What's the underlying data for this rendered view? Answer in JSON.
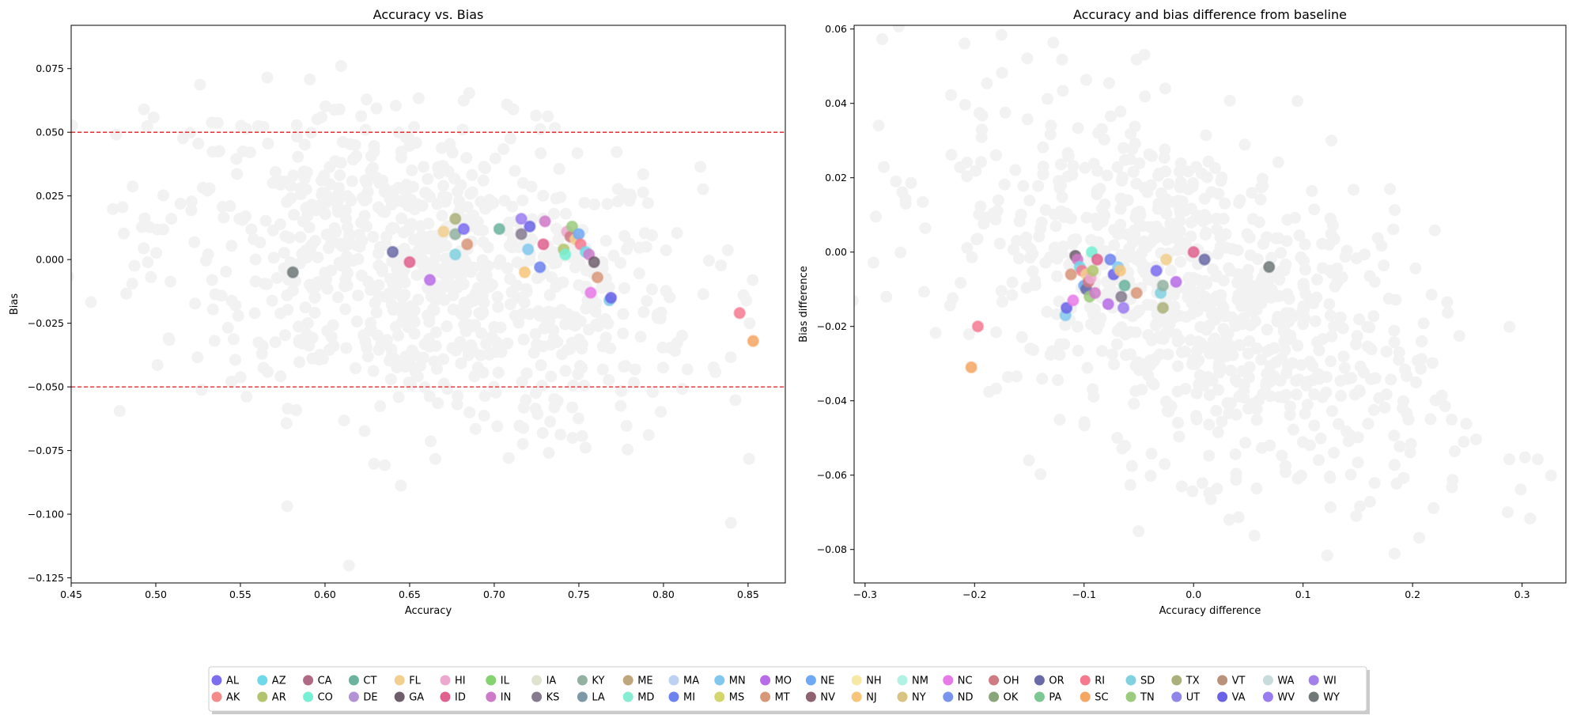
{
  "chart_data": [
    {
      "type": "scatter",
      "title": "Accuracy vs. Bias",
      "xlabel": "Accuracy",
      "ylabel": "Bias",
      "xlim": [
        0.45,
        0.872
      ],
      "ylim": [
        -0.127,
        0.092
      ],
      "xticks": [
        0.45,
        0.5,
        0.55,
        0.6,
        0.65,
        0.7,
        0.75,
        0.8,
        0.85
      ],
      "xtick_labels": [
        "0.45",
        "0.50",
        "0.55",
        "0.60",
        "0.65",
        "0.70",
        "0.75",
        "0.80",
        "0.85"
      ],
      "yticks": [
        -0.125,
        -0.1,
        -0.075,
        -0.05,
        -0.025,
        0.0,
        0.025,
        0.05,
        0.075
      ],
      "ytick_labels": [
        "−0.125",
        "−0.100",
        "−0.075",
        "−0.050",
        "−0.025",
        "0.000",
        "0.025",
        "0.050",
        "0.075"
      ],
      "reference_lines": [
        {
          "axis": "y",
          "value": 0.05,
          "color": "#e41a1c",
          "style": "dashed"
        },
        {
          "axis": "y",
          "value": -0.05,
          "color": "#e41a1c",
          "style": "dashed"
        }
      ],
      "background_cloud": {
        "color": "#f2f2f2",
        "center": [
          0.66,
          -0.005
        ],
        "spread": [
          0.08,
          0.03
        ],
        "count": 900
      },
      "points": [
        {
          "state": "WY",
          "x": 0.581,
          "y": -0.005
        },
        {
          "state": "OR",
          "x": 0.64,
          "y": 0.003
        },
        {
          "state": "ID",
          "x": 0.65,
          "y": -0.001
        },
        {
          "state": "MO",
          "x": 0.662,
          "y": -0.008
        },
        {
          "state": "FL",
          "x": 0.67,
          "y": 0.011
        },
        {
          "state": "TX",
          "x": 0.677,
          "y": 0.016
        },
        {
          "state": "KY",
          "x": 0.677,
          "y": 0.01
        },
        {
          "state": "SD",
          "x": 0.677,
          "y": 0.002
        },
        {
          "state": "AL",
          "x": 0.682,
          "y": 0.012
        },
        {
          "state": "MT",
          "x": 0.684,
          "y": 0.006
        },
        {
          "state": "CT",
          "x": 0.703,
          "y": 0.012
        },
        {
          "state": "WV",
          "x": 0.716,
          "y": 0.016
        },
        {
          "state": "KS",
          "x": 0.716,
          "y": 0.01
        },
        {
          "state": "NJ",
          "x": 0.718,
          "y": -0.005
        },
        {
          "state": "MN",
          "x": 0.72,
          "y": 0.004
        },
        {
          "state": "VA",
          "x": 0.721,
          "y": 0.013
        },
        {
          "state": "MI",
          "x": 0.727,
          "y": -0.003
        },
        {
          "state": "ID",
          "x": 0.729,
          "y": 0.006
        },
        {
          "state": "IN",
          "x": 0.73,
          "y": 0.015
        },
        {
          "state": "AR",
          "x": 0.741,
          "y": 0.004
        },
        {
          "state": "CO",
          "x": 0.742,
          "y": 0.002
        },
        {
          "state": "HI",
          "x": 0.743,
          "y": 0.011
        },
        {
          "state": "OH",
          "x": 0.745,
          "y": 0.009
        },
        {
          "state": "TN",
          "x": 0.746,
          "y": 0.013
        },
        {
          "state": "FL",
          "x": 0.748,
          "y": 0.008
        },
        {
          "state": "NE",
          "x": 0.75,
          "y": 0.01
        },
        {
          "state": "RI",
          "x": 0.751,
          "y": 0.006
        },
        {
          "state": "AZ",
          "x": 0.754,
          "y": 0.003
        },
        {
          "state": "IN",
          "x": 0.756,
          "y": 0.002
        },
        {
          "state": "NC",
          "x": 0.757,
          "y": -0.013
        },
        {
          "state": "GA",
          "x": 0.759,
          "y": -0.001
        },
        {
          "state": "MT",
          "x": 0.761,
          "y": -0.007
        },
        {
          "state": "MN",
          "x": 0.768,
          "y": -0.016
        },
        {
          "state": "VA",
          "x": 0.769,
          "y": -0.015
        },
        {
          "state": "RI",
          "x": 0.845,
          "y": -0.021
        },
        {
          "state": "SC",
          "x": 0.853,
          "y": -0.032
        }
      ]
    },
    {
      "type": "scatter",
      "title": "Accuracy and bias difference from baseline",
      "xlabel": "Accuracy difference",
      "ylabel": "Bias difference",
      "xlim": [
        -0.31,
        0.34
      ],
      "ylim": [
        -0.089,
        0.061
      ],
      "xticks": [
        -0.3,
        -0.2,
        -0.1,
        0.0,
        0.1,
        0.2,
        0.3
      ],
      "xtick_labels": [
        "−0.3",
        "−0.2",
        "−0.1",
        "0.0",
        "0.1",
        "0.2",
        "0.3"
      ],
      "yticks": [
        -0.08,
        -0.06,
        -0.04,
        -0.02,
        0.0,
        0.02,
        0.04,
        0.06
      ],
      "ytick_labels": [
        "−0.08",
        "−0.06",
        "−0.04",
        "−0.02",
        "0.00",
        "0.02",
        "0.04",
        "0.06"
      ],
      "background_cloud": {
        "color": "#f2f2f2",
        "center": [
          0.0,
          -0.012
        ],
        "spread": [
          0.11,
          0.022
        ],
        "count": 900
      },
      "points": [
        {
          "state": "SC",
          "x": -0.203,
          "y": -0.031
        },
        {
          "state": "RI",
          "x": -0.197,
          "y": -0.02
        },
        {
          "state": "MN",
          "x": -0.117,
          "y": -0.017
        },
        {
          "state": "VA",
          "x": -0.116,
          "y": -0.015
        },
        {
          "state": "MT",
          "x": -0.112,
          "y": -0.006
        },
        {
          "state": "NC",
          "x": -0.11,
          "y": -0.013
        },
        {
          "state": "GA",
          "x": -0.108,
          "y": -0.001
        },
        {
          "state": "IN",
          "x": -0.106,
          "y": -0.002
        },
        {
          "state": "AZ",
          "x": -0.104,
          "y": -0.004
        },
        {
          "state": "RI",
          "x": -0.102,
          "y": -0.005
        },
        {
          "state": "NE",
          "x": -0.1,
          "y": -0.009
        },
        {
          "state": "FL",
          "x": -0.098,
          "y": -0.006
        },
        {
          "state": "OR",
          "x": -0.098,
          "y": -0.01
        },
        {
          "state": "OH",
          "x": -0.096,
          "y": -0.008
        },
        {
          "state": "TN",
          "x": -0.095,
          "y": -0.012
        },
        {
          "state": "HI",
          "x": -0.094,
          "y": -0.007
        },
        {
          "state": "CO",
          "x": -0.093,
          "y": 0.0
        },
        {
          "state": "AR",
          "x": -0.092,
          "y": -0.005
        },
        {
          "state": "IN",
          "x": -0.09,
          "y": -0.011
        },
        {
          "state": "ID",
          "x": -0.088,
          "y": -0.002
        },
        {
          "state": "MO",
          "x": -0.078,
          "y": -0.014
        },
        {
          "state": "MI",
          "x": -0.076,
          "y": -0.002
        },
        {
          "state": "VA",
          "x": -0.073,
          "y": -0.006
        },
        {
          "state": "MN",
          "x": -0.069,
          "y": -0.004
        },
        {
          "state": "NJ",
          "x": -0.067,
          "y": -0.005
        },
        {
          "state": "KS",
          "x": -0.066,
          "y": -0.012
        },
        {
          "state": "WV",
          "x": -0.064,
          "y": -0.015
        },
        {
          "state": "CT",
          "x": -0.063,
          "y": -0.009
        },
        {
          "state": "MT",
          "x": -0.052,
          "y": -0.011
        },
        {
          "state": "AL",
          "x": -0.034,
          "y": -0.005
        },
        {
          "state": "SD",
          "x": -0.03,
          "y": -0.011
        },
        {
          "state": "KY",
          "x": -0.028,
          "y": -0.009
        },
        {
          "state": "TX",
          "x": -0.028,
          "y": -0.015
        },
        {
          "state": "FL",
          "x": -0.025,
          "y": -0.002
        },
        {
          "state": "MO",
          "x": -0.016,
          "y": -0.008
        },
        {
          "state": "ID",
          "x": 0.0,
          "y": 0.0
        },
        {
          "state": "OR",
          "x": 0.01,
          "y": -0.002
        },
        {
          "state": "WY",
          "x": 0.069,
          "y": -0.004
        }
      ]
    }
  ],
  "legend": {
    "placement": "bottom-center",
    "items": [
      {
        "label": "AL",
        "color": "#7b6cf0"
      },
      {
        "label": "AK",
        "color": "#f58a8a"
      },
      {
        "label": "AZ",
        "color": "#6fd9ea"
      },
      {
        "label": "AR",
        "color": "#b2c46e"
      },
      {
        "label": "CA",
        "color": "#b06a86"
      },
      {
        "label": "CO",
        "color": "#76f0d4"
      },
      {
        "label": "CT",
        "color": "#6cb39e"
      },
      {
        "label": "DE",
        "color": "#b493d4"
      },
      {
        "label": "FL",
        "color": "#f1cf8e"
      },
      {
        "label": "GA",
        "color": "#6e5e6c"
      },
      {
        "label": "HI",
        "color": "#eda8cf"
      },
      {
        "label": "ID",
        "color": "#e0608e"
      },
      {
        "label": "IL",
        "color": "#85d36e"
      },
      {
        "label": "IN",
        "color": "#cf7ac8"
      },
      {
        "label": "IA",
        "color": "#dfe2cf"
      },
      {
        "label": "KS",
        "color": "#857a8e"
      },
      {
        "label": "KY",
        "color": "#93b1a0"
      },
      {
        "label": "LA",
        "color": "#7d99a8"
      },
      {
        "label": "ME",
        "color": "#bfa67c"
      },
      {
        "label": "MD",
        "color": "#86ecd2"
      },
      {
        "label": "MA",
        "color": "#bdd2f2"
      },
      {
        "label": "MI",
        "color": "#6c82ef"
      },
      {
        "label": "MN",
        "color": "#82c8ee"
      },
      {
        "label": "MS",
        "color": "#d4d66c"
      },
      {
        "label": "MO",
        "color": "#b86ce8"
      },
      {
        "label": "MT",
        "color": "#d9977a"
      },
      {
        "label": "NE",
        "color": "#6fa9f5"
      },
      {
        "label": "NV",
        "color": "#8e6270"
      },
      {
        "label": "NH",
        "color": "#f7e9a4"
      },
      {
        "label": "NJ",
        "color": "#f7c57a"
      },
      {
        "label": "NM",
        "color": "#b0f2e4"
      },
      {
        "label": "NY",
        "color": "#d8c480"
      },
      {
        "label": "NC",
        "color": "#e87ae8"
      },
      {
        "label": "ND",
        "color": "#7894ee"
      },
      {
        "label": "OH",
        "color": "#d07a82"
      },
      {
        "label": "OK",
        "color": "#88a678"
      },
      {
        "label": "OR",
        "color": "#6a6aa6"
      },
      {
        "label": "PA",
        "color": "#7cc792"
      },
      {
        "label": "RI",
        "color": "#f57a90"
      },
      {
        "label": "SC",
        "color": "#f5a662"
      },
      {
        "label": "SD",
        "color": "#82d1e0"
      },
      {
        "label": "TN",
        "color": "#9bcb7e"
      },
      {
        "label": "TX",
        "color": "#acb07a"
      },
      {
        "label": "UT",
        "color": "#8e84ea"
      },
      {
        "label": "VT",
        "color": "#b8937a"
      },
      {
        "label": "VA",
        "color": "#6a62e6"
      },
      {
        "label": "WA",
        "color": "#c8dcdc"
      },
      {
        "label": "WV",
        "color": "#9a7cf0"
      },
      {
        "label": "WI",
        "color": "#a380ea"
      },
      {
        "label": "WY",
        "color": "#707878"
      }
    ]
  }
}
